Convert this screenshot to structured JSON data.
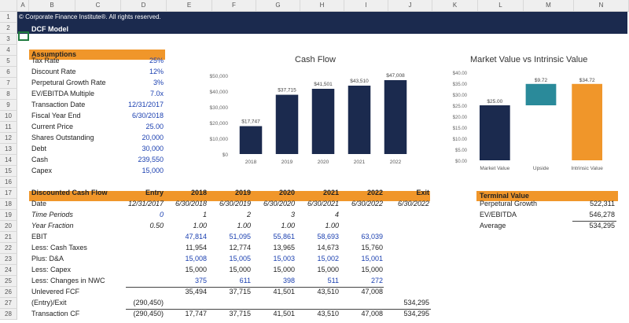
{
  "sheet": {
    "columns": [
      "A",
      "B",
      "C",
      "D",
      "E",
      "F",
      "G",
      "H",
      "I",
      "J",
      "K",
      "L",
      "M",
      "N"
    ],
    "rows": [
      "1",
      "2",
      "3",
      "4",
      "5",
      "6",
      "7",
      "8",
      "9",
      "10",
      "11",
      "12",
      "13",
      "14",
      "15",
      "16",
      "17",
      "18",
      "19",
      "20",
      "21",
      "22",
      "23",
      "24",
      "25",
      "26",
      "27",
      "28"
    ],
    "copyright": "© Corporate Finance Institute®. All rights reserved.",
    "title": "DCF Model"
  },
  "assumptions": {
    "header": "Assumptions",
    "items": [
      {
        "label": "Tax Rate",
        "value": "25%"
      },
      {
        "label": "Discount Rate",
        "value": "12%"
      },
      {
        "label": "Perpetural Growth Rate",
        "value": "3%"
      },
      {
        "label": "EV/EBITDA Multiple",
        "value": "7.0x"
      },
      {
        "label": "Transaction Date",
        "value": "12/31/2017"
      },
      {
        "label": "Fiscal Year End",
        "value": "6/30/2018"
      },
      {
        "label": "Current Price",
        "value": "25.00"
      },
      {
        "label": "Shares Outstanding",
        "value": "20,000"
      },
      {
        "label": "Debt",
        "value": "30,000"
      },
      {
        "label": "Cash",
        "value": "239,550"
      },
      {
        "label": "Capex",
        "value": "15,000"
      }
    ]
  },
  "dcf": {
    "header": [
      "Discounted Cash Flow",
      "Entry",
      "2018",
      "2019",
      "2020",
      "2021",
      "2022",
      "Exit"
    ],
    "rows": [
      {
        "label": "Date",
        "style": "",
        "cells": [
          "12/31/2017",
          "6/30/2018",
          "6/30/2019",
          "6/30/2020",
          "6/30/2021",
          "6/30/2022",
          "6/30/2022"
        ],
        "colors": [
          "",
          "",
          "",
          "",
          "",
          "",
          ""
        ],
        "italic": true
      },
      {
        "label": "Time Periods",
        "style": "it",
        "cells": [
          "0",
          "1",
          "2",
          "3",
          "4",
          "",
          ""
        ],
        "colors": [
          "blue",
          "",
          "",
          "",
          "",
          "",
          ""
        ],
        "italic": true
      },
      {
        "label": "Year Fraction",
        "style": "it",
        "cells": [
          "0.50",
          "1.00",
          "1.00",
          "1.00",
          "1.00",
          "",
          ""
        ],
        "colors": [
          "",
          "",
          "",
          "",
          "",
          "",
          ""
        ],
        "italic": true
      },
      {
        "label": "EBIT",
        "style": "",
        "cells": [
          "",
          "47,814",
          "51,095",
          "55,861",
          "58,693",
          "63,039",
          ""
        ],
        "colors": [
          "",
          "blue",
          "blue",
          "blue",
          "blue",
          "blue",
          ""
        ]
      },
      {
        "label": "Less: Cash Taxes",
        "style": "",
        "cells": [
          "",
          "11,954",
          "12,774",
          "13,965",
          "14,673",
          "15,760",
          ""
        ],
        "colors": [
          "",
          "",
          "",
          "",
          "",
          "",
          ""
        ]
      },
      {
        "label": "Plus: D&A",
        "style": "",
        "cells": [
          "",
          "15,008",
          "15,005",
          "15,003",
          "15,002",
          "15,001",
          ""
        ],
        "colors": [
          "",
          "blue",
          "blue",
          "blue",
          "blue",
          "blue",
          ""
        ]
      },
      {
        "label": "Less: Capex",
        "style": "",
        "cells": [
          "",
          "15,000",
          "15,000",
          "15,000",
          "15,000",
          "15,000",
          ""
        ],
        "colors": [
          "",
          "",
          "",
          "",
          "",
          "",
          ""
        ]
      },
      {
        "label": "Less: Changes in NWC",
        "style": "",
        "cells": [
          "",
          "375",
          "611",
          "398",
          "511",
          "272",
          ""
        ],
        "colors": [
          "",
          "blue",
          "blue",
          "blue",
          "blue",
          "blue",
          ""
        ]
      },
      {
        "label": "Unlevered FCF",
        "style": "",
        "cells": [
          "",
          "35,494",
          "37,715",
          "41,501",
          "43,510",
          "47,008",
          ""
        ],
        "colors": [
          "",
          "",
          "",
          "",
          "",
          "",
          ""
        ]
      },
      {
        "label": "(Entry)/Exit",
        "style": "",
        "cells": [
          "(290,450)",
          "",
          "",
          "",
          "",
          "",
          "534,295"
        ],
        "colors": [
          "",
          "",
          "",
          "",
          "",
          "",
          ""
        ]
      },
      {
        "label": "Transaction CF",
        "style": "",
        "cells": [
          "(290,450)",
          "17,747",
          "37,715",
          "41,501",
          "43,510",
          "47,008",
          "534,295"
        ],
        "colors": [
          "",
          "",
          "",
          "",
          "",
          "",
          ""
        ]
      }
    ]
  },
  "terminal": {
    "header": "Terminal Value",
    "items": [
      {
        "label": "Perpetural Growth",
        "value": "522,311"
      },
      {
        "label": "EV/EBITDA",
        "value": "546,278"
      },
      {
        "label": "Average",
        "value": "534,295"
      }
    ]
  },
  "chart_data": [
    {
      "type": "bar",
      "title": "Cash Flow",
      "categories": [
        "2018",
        "2019",
        "2020",
        "2021",
        "2022"
      ],
      "values": [
        17747,
        37715,
        41501,
        43510,
        47008
      ],
      "value_labels": [
        "$17,747",
        "$37,715",
        "$41,501",
        "$43,510",
        "$47,008"
      ],
      "ylim": [
        0,
        50000
      ],
      "yticks": [
        "$0",
        "$10,000",
        "$20,000",
        "$30,000",
        "$40,000",
        "$50,000"
      ],
      "color": "#1b2a4e"
    },
    {
      "type": "bar",
      "title": "Market Value vs Intrinsic Value",
      "categories": [
        "Market Value",
        "Upside",
        "Intrinsic Value"
      ],
      "values": [
        25.0,
        9.72,
        34.72
      ],
      "value_labels": [
        "$25.00",
        "$9.72",
        "$34.72"
      ],
      "waterfall_base": [
        0,
        25.0,
        0
      ],
      "colors": [
        "#1b2a4e",
        "#2a8a9a",
        "#f0962a"
      ],
      "ylim": [
        0,
        40
      ],
      "yticks": [
        "$0.00",
        "$5.00",
        "$10.00",
        "$15.00",
        "$20.00",
        "$25.00",
        "$30.00",
        "$35.00",
        "$40.00"
      ]
    }
  ]
}
